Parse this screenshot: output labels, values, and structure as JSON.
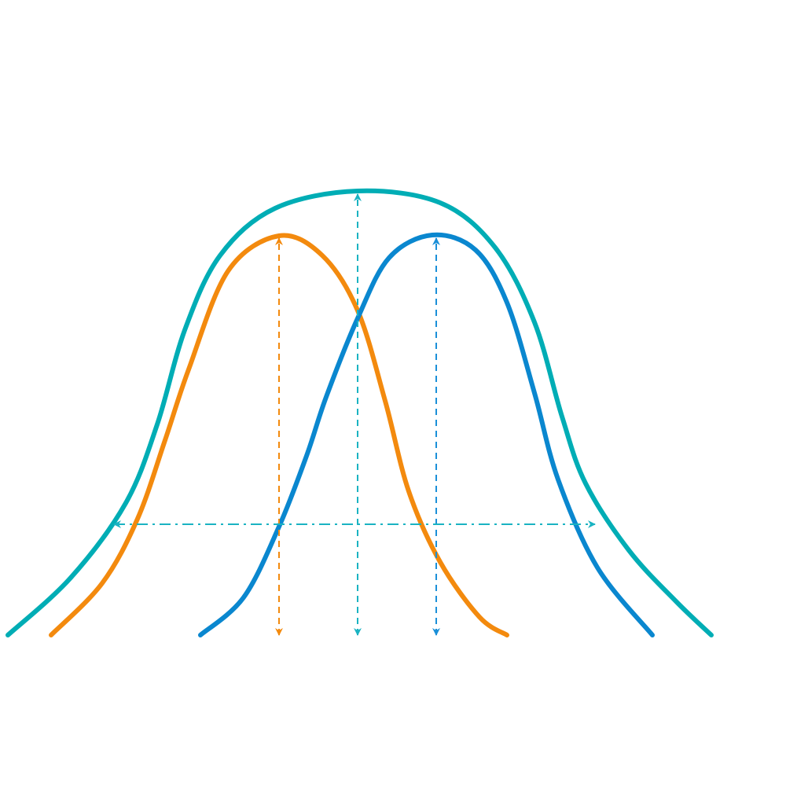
{
  "diagram": {
    "colors": {
      "wide_curve": "#00ADB5",
      "left_curve": "#F38A0E",
      "right_curve": "#0A87CF",
      "wide_arrows": "#1AB3C2",
      "left_arrow": "#F38A0E",
      "right_arrow": "#1A8FD8"
    },
    "curves": [
      "wide-distribution-curve",
      "left-distribution-curve",
      "right-distribution-curve"
    ],
    "arrows": [
      "left-peak-height-arrow",
      "center-peak-height-arrow",
      "right-peak-height-arrow",
      "spread-width-arrow"
    ]
  }
}
